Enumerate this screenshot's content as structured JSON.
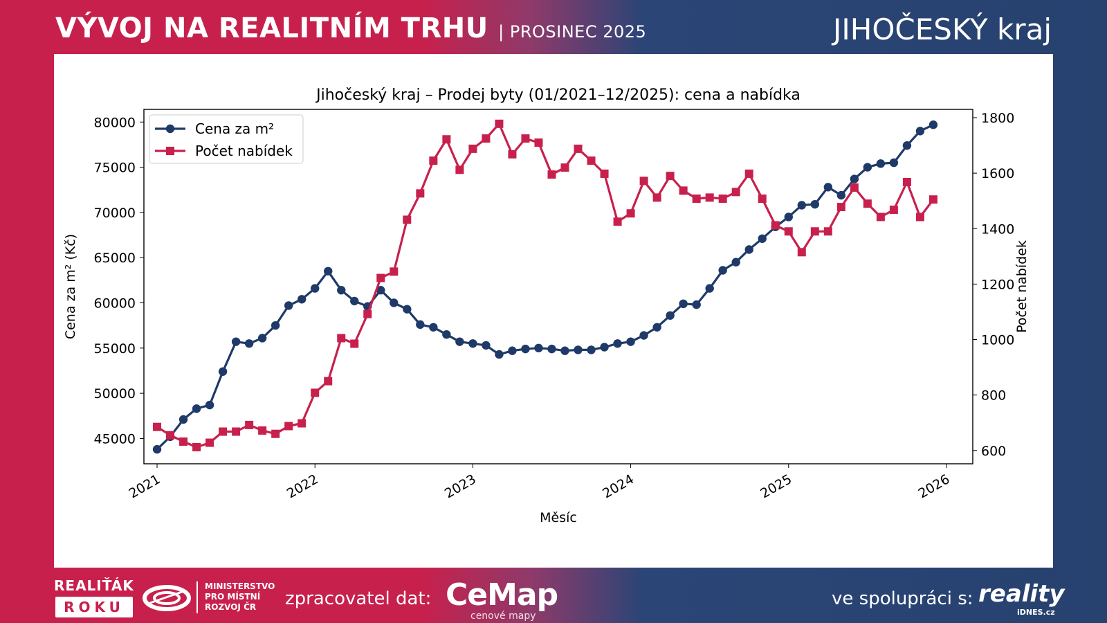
{
  "header": {
    "title": "VÝVOJ NA REALITNÍM TRHU",
    "subtitle": "| PROSINEC 2025",
    "region": "JIHOČESKÝ kraj"
  },
  "footer": {
    "realitak": "REALIŤÁK",
    "roku": "ROKU",
    "ministry": [
      "MINISTERSTVO",
      "PRO MÍSTNÍ",
      "ROZVOJ ČR"
    ],
    "processor_label": "zpracovatel dat:",
    "cemap": "CeMap",
    "cemap_sub": "cenové mapy",
    "cooperation_label": "ve spolupráci s:",
    "reality": "reality",
    "idnes": "iDNES.cz"
  },
  "colors": {
    "price": "#1f3a68",
    "count": "#c8204c",
    "brand_red": "#c8204c",
    "brand_blue": "#27426f"
  },
  "chart_data": {
    "type": "line",
    "title": "Jihočeský kraj – Prodej byty (01/2021–12/2025): cena a nabídka",
    "xlabel": "Měsíc",
    "ylabel": "Cena za m² (Kč)",
    "y2label": "Počet nabídek",
    "x_start": "2021-01",
    "x_ticks": [
      "2021",
      "2022",
      "2023",
      "2024",
      "2025",
      "2026"
    ],
    "xlim": [
      -1,
      62
    ],
    "ylim": [
      42200,
      81400
    ],
    "y_ticks": [
      45000,
      50000,
      55000,
      60000,
      65000,
      70000,
      75000,
      80000
    ],
    "y2lim": [
      552,
      1830
    ],
    "y2_ticks": [
      600,
      800,
      1000,
      1200,
      1400,
      1600,
      1800
    ],
    "legend_position": "top-left",
    "series": [
      {
        "name": "Cena za m²",
        "axis": "left",
        "marker": "circle",
        "values": [
          43800,
          45200,
          47100,
          48300,
          48700,
          52400,
          55700,
          55500,
          56100,
          57500,
          59700,
          60400,
          61600,
          63500,
          61400,
          60200,
          59600,
          61400,
          60000,
          59300,
          57600,
          57300,
          56500,
          55700,
          55500,
          55300,
          54300,
          54700,
          54900,
          55000,
          54900,
          54700,
          54800,
          54800,
          55100,
          55500,
          55700,
          56400,
          57300,
          58600,
          59900,
          59800,
          61600,
          63600,
          64500,
          65900,
          67100,
          68400,
          69500,
          70800,
          70900,
          72800,
          71900,
          73700,
          75000,
          75400,
          75500,
          77400,
          79000,
          79700
        ]
      },
      {
        "name": "Počet nabídek",
        "axis": "right",
        "marker": "square",
        "values": [
          685,
          655,
          632,
          612,
          628,
          668,
          668,
          692,
          672,
          660,
          688,
          698,
          808,
          850,
          1005,
          985,
          1092,
          1222,
          1245,
          1432,
          1527,
          1645,
          1722,
          1612,
          1688,
          1725,
          1778,
          1668,
          1725,
          1710,
          1595,
          1620,
          1688,
          1645,
          1598,
          1425,
          1455,
          1572,
          1512,
          1590,
          1537,
          1508,
          1512,
          1508,
          1532,
          1598,
          1508,
          1412,
          1390,
          1315,
          1390,
          1390,
          1478,
          1548,
          1490,
          1442,
          1468,
          1568,
          1442,
          1505
        ]
      }
    ]
  }
}
